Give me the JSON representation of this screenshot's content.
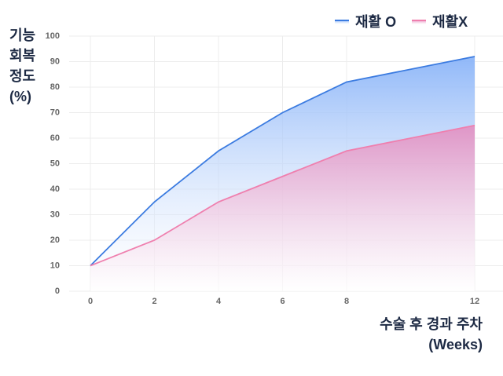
{
  "chart_data": {
    "type": "area",
    "ylabel": [
      "기능",
      "회복",
      "정도",
      "(%)"
    ],
    "xlabel": [
      "수술 후 경과 주차",
      "(Weeks)"
    ],
    "x": [
      0,
      2,
      4,
      6,
      8,
      12
    ],
    "series": [
      {
        "name": "재활 O",
        "color": "#3b7be0",
        "values": [
          10,
          35,
          55,
          70,
          82,
          92
        ]
      },
      {
        "name": "재활X",
        "color": "#ef7fae",
        "values": [
          10,
          20,
          35,
          45,
          55,
          65
        ]
      }
    ],
    "xlim": [
      0,
      12
    ],
    "xticks": [
      0,
      2,
      4,
      6,
      8,
      12
    ],
    "ylim": [
      0,
      100
    ],
    "yticks": [
      0,
      10,
      20,
      30,
      40,
      50,
      60,
      70,
      80,
      90,
      100
    ],
    "grid": true,
    "legend": "top-right"
  }
}
